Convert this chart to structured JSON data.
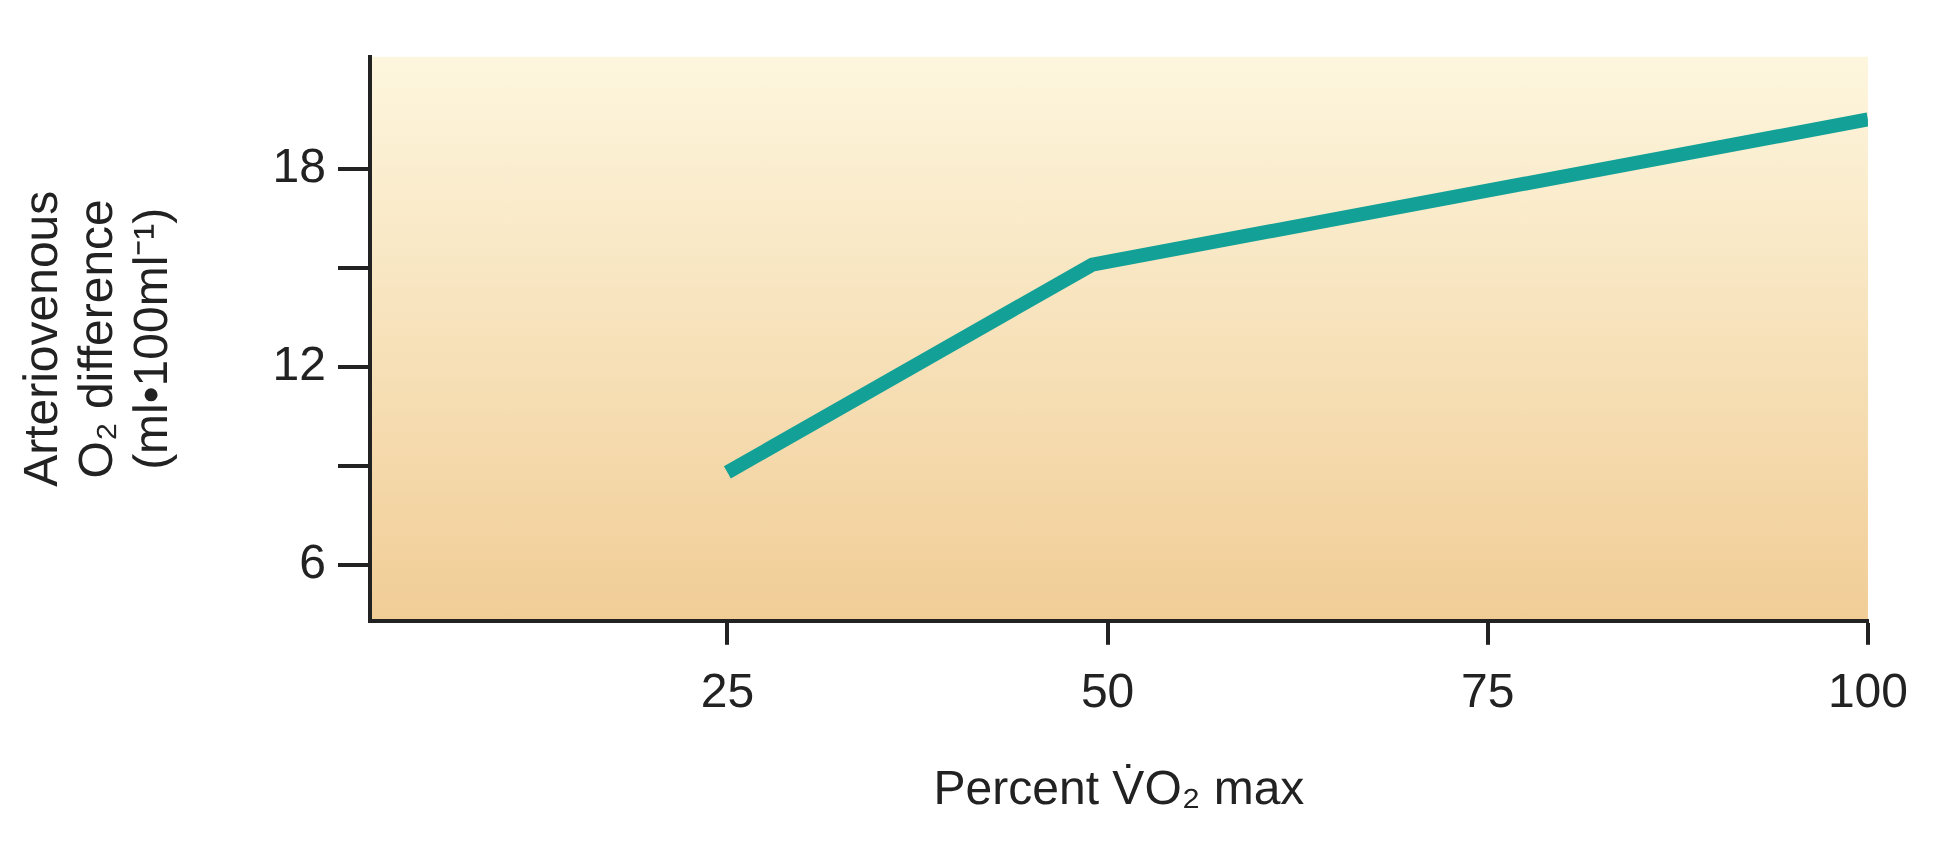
{
  "chart_data": {
    "type": "line",
    "xlabel": "Percent V̇O₂ max",
    "ylabel": "Arteriovenous\nO₂ difference\n(ml•100ml⁻¹)",
    "x": [
      25,
      49,
      100
    ],
    "series": [
      {
        "color": "#13a197",
        "values": [
          8.8,
          15.1,
          19.5
        ]
      }
    ],
    "xlim": [
      1.5,
      100
    ],
    "xticks": [
      25,
      50,
      75,
      100
    ],
    "ylim": [
      4.3,
      21.4
    ],
    "yticks": [
      6,
      {
        "value": 9,
        "label": null
      },
      12,
      {
        "value": 15,
        "label": null
      },
      18
    ],
    "grid": false,
    "legend": false,
    "marker": "none",
    "line_style": "solid"
  }
}
